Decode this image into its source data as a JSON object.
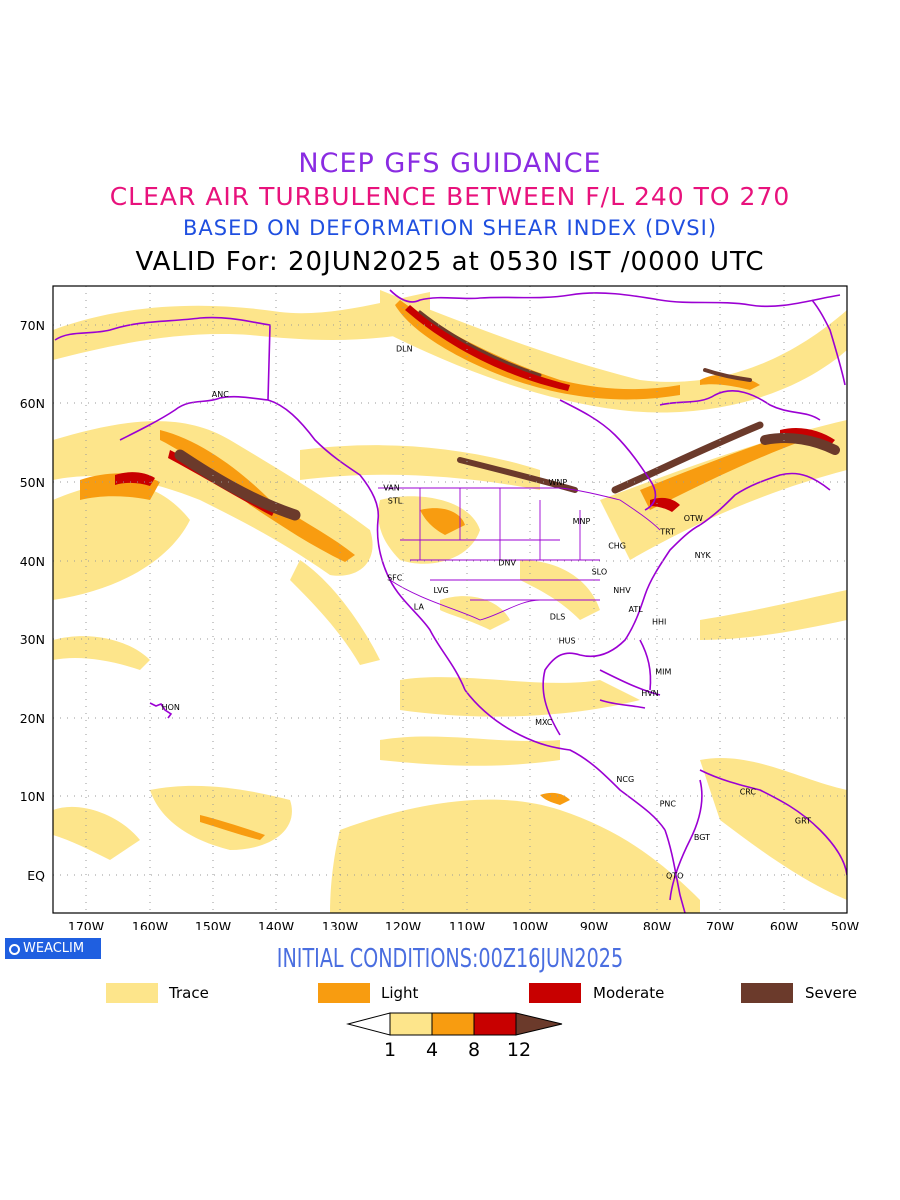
{
  "titles": {
    "line1": "NCEP GFS GUIDANCE",
    "line2": "CLEAR AIR TURBULENCE BETWEEN F/L 240 TO 270",
    "line3": "BASED ON DEFORMATION SHEAR INDEX (DVSI)",
    "line4": "VALID For: 20JUN2025 at 0530 IST /0000 UTC"
  },
  "map": {
    "lat_labels": [
      "70N",
      "60N",
      "50N",
      "40N",
      "30N",
      "20N",
      "10N",
      "EQ"
    ],
    "lon_labels": [
      "170W",
      "160W",
      "150W",
      "140W",
      "130W",
      "120W",
      "110W",
      "100W",
      "90W",
      "80W",
      "70W",
      "60W",
      "50W"
    ],
    "stations": [
      {
        "code": "DLN",
        "lon": -121,
        "lat": 67
      },
      {
        "code": "ANC",
        "lon": -150,
        "lat": 61.2
      },
      {
        "code": "VAN",
        "lon": -123,
        "lat": 49.3
      },
      {
        "code": "STL",
        "lon": -122.3,
        "lat": 47.6
      },
      {
        "code": "WNP",
        "lon": -97,
        "lat": 50
      },
      {
        "code": "MNP",
        "lon": -93.2,
        "lat": 45
      },
      {
        "code": "OTW",
        "lon": -75.7,
        "lat": 45.4
      },
      {
        "code": "TRT",
        "lon": -79.4,
        "lat": 43.7
      },
      {
        "code": "CHG",
        "lon": -87.6,
        "lat": 41.9
      },
      {
        "code": "NYK",
        "lon": -74,
        "lat": 40.7
      },
      {
        "code": "DNV",
        "lon": -104.9,
        "lat": 39.7
      },
      {
        "code": "SFC",
        "lon": -122.4,
        "lat": 37.8
      },
      {
        "code": "SLO",
        "lon": -90.2,
        "lat": 38.6
      },
      {
        "code": "LVG",
        "lon": -115.1,
        "lat": 36.2
      },
      {
        "code": "NHV",
        "lon": -86.8,
        "lat": 36.2
      },
      {
        "code": "LA",
        "lon": -118.2,
        "lat": 34.1
      },
      {
        "code": "ATL",
        "lon": -84.4,
        "lat": 33.8
      },
      {
        "code": "DLS",
        "lon": -96.8,
        "lat": 32.8
      },
      {
        "code": "HHI",
        "lon": -80.7,
        "lat": 32.2
      },
      {
        "code": "HUS",
        "lon": -95.4,
        "lat": 29.8
      },
      {
        "code": "MIM",
        "lon": -80.2,
        "lat": 25.8
      },
      {
        "code": "HVN",
        "lon": -82.4,
        "lat": 23.1
      },
      {
        "code": "HON",
        "lon": -157.9,
        "lat": 21.3
      },
      {
        "code": "MXC",
        "lon": -99.1,
        "lat": 19.4
      },
      {
        "code": "NCG",
        "lon": -86.3,
        "lat": 12.1
      },
      {
        "code": "CRC",
        "lon": -66.9,
        "lat": 10.5
      },
      {
        "code": "PNC",
        "lon": -79.5,
        "lat": 9
      },
      {
        "code": "GRT",
        "lon": -58.2,
        "lat": 6.8
      },
      {
        "code": "BGT",
        "lon": -74.1,
        "lat": 4.7
      },
      {
        "code": "QTO",
        "lon": -78.5,
        "lat": -0.2
      }
    ]
  },
  "badge": "WEACLIM",
  "initial_conditions": "INITIAL CONDITIONS:00Z16JUN2025",
  "legend": [
    {
      "label": "Trace",
      "color": "#fde58b"
    },
    {
      "label": "Light",
      "color": "#f89c10"
    },
    {
      "label": "Moderate",
      "color": "#c80000"
    },
    {
      "label": "Severe",
      "color": "#6b3a2b"
    }
  ],
  "colorbar": {
    "ticks": [
      "1",
      "4",
      "8",
      "12"
    ],
    "colors": [
      "#fde58b",
      "#f89c10",
      "#c80000",
      "#6b3a2b"
    ]
  },
  "colors": {
    "coast": "#9b00d3",
    "border": "#9b00d3",
    "trace": "#fde58b",
    "light": "#f89c10",
    "moderate": "#c80000",
    "severe": "#6b3a2b"
  }
}
